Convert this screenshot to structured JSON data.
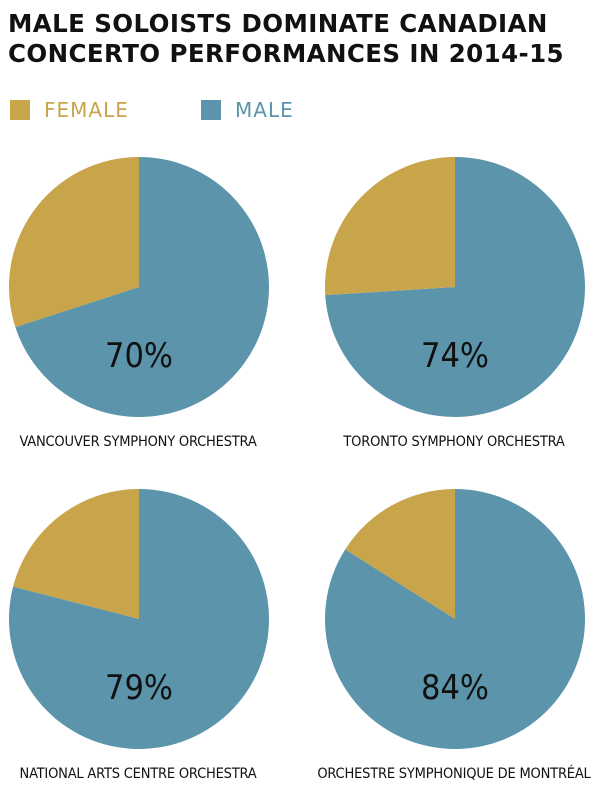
{
  "title_line1": "MALE SOLOISTS DOMINATE CANADIAN",
  "title_line2": "CONCERTO PERFORMANCES IN 2014-15",
  "colors": {
    "female": "#c8a44b",
    "male": "#5b94ab"
  },
  "legend": {
    "female_label": "FEMALE",
    "male_label": "MALE"
  },
  "chart_data": [
    {
      "type": "pie",
      "title": "VANCOUVER SYMPHONY ORCHESTRA",
      "label": "70%",
      "categories": [
        "FEMALE",
        "MALE"
      ],
      "values": [
        30,
        70
      ]
    },
    {
      "type": "pie",
      "title": "TORONTO SYMPHONY ORCHESTRA",
      "label": "74%",
      "categories": [
        "FEMALE",
        "MALE"
      ],
      "values": [
        26,
        74
      ]
    },
    {
      "type": "pie",
      "title": "NATIONAL ARTS CENTRE ORCHESTRA",
      "label": "79%",
      "categories": [
        "FEMALE",
        "MALE"
      ],
      "values": [
        21,
        79
      ]
    },
    {
      "type": "pie",
      "title": "ORCHESTRE SYMPHONIQUE DE MONTRÉAL",
      "label": "84%",
      "categories": [
        "FEMALE",
        "MALE"
      ],
      "values": [
        16,
        84
      ]
    }
  ]
}
